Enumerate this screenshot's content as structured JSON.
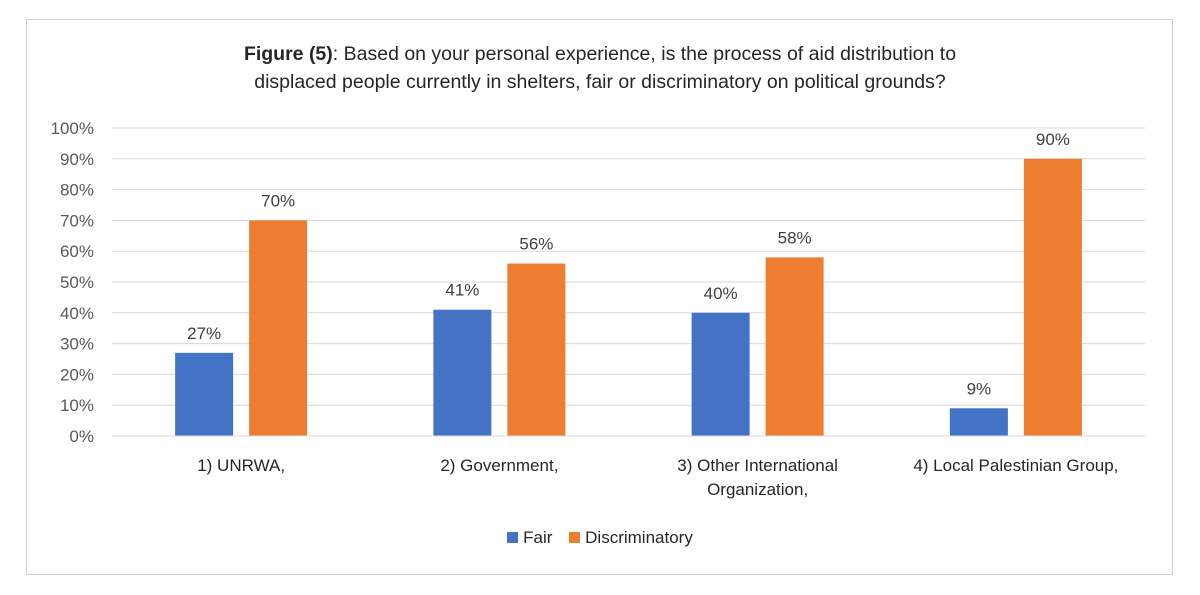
{
  "chart_data": {
    "type": "bar",
    "title_bold": "Figure (5)",
    "title_line1": ": Based on your personal experience, is the process of aid distribution to",
    "title_line2": "displaced people currently in shelters, fair or discriminatory on political grounds?",
    "categories": [
      [
        "1) UNRWA,"
      ],
      [
        "2) Government,"
      ],
      [
        "3) Other International",
        "Organization,"
      ],
      [
        "4) Local Palestinian Group,"
      ]
    ],
    "series": [
      {
        "name": "Fair",
        "color": "#4472c4",
        "values": [
          27,
          41,
          40,
          9
        ],
        "labels": [
          "27%",
          "41%",
          "40%",
          "9%"
        ]
      },
      {
        "name": "Discriminatory",
        "color": "#ed7d31",
        "values": [
          70,
          56,
          58,
          90
        ],
        "labels": [
          "70%",
          "56%",
          "58%",
          "90%"
        ]
      }
    ],
    "ylim": [
      0,
      100
    ],
    "yticks": [
      "0%",
      "10%",
      "20%",
      "30%",
      "40%",
      "50%",
      "60%",
      "70%",
      "80%",
      "90%",
      "100%"
    ],
    "grid": true,
    "legend_position": "bottom"
  }
}
